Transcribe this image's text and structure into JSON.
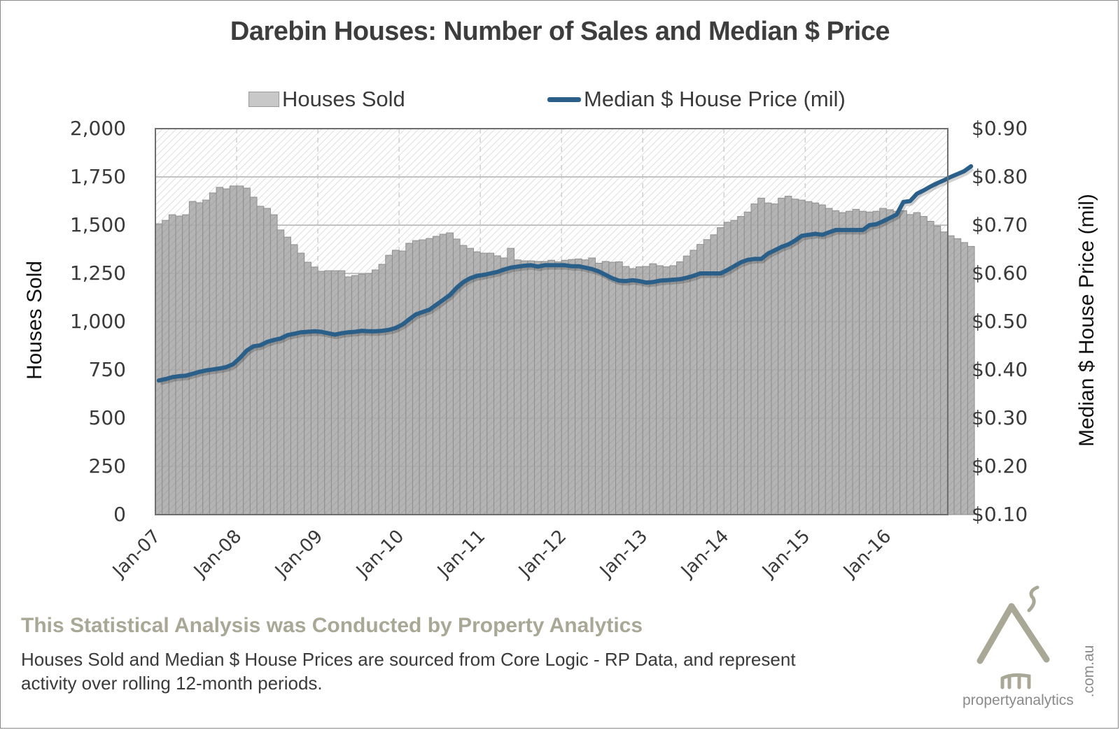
{
  "chart_data": {
    "type": "bar",
    "title": "Darebin Houses: Number of Sales and Median $ Price",
    "legend": {
      "placement": "top-center",
      "entries": [
        "Houses Sold",
        "Median $ House Price (mil)"
      ]
    },
    "ylabel": "Houses Sold",
    "y2label": "Median $ House Price (mil)",
    "ylim": [
      0,
      2000
    ],
    "y2lim": [
      0.1,
      0.9
    ],
    "yticks": [
      "0",
      "250",
      "500",
      "750",
      "1,000",
      "1,250",
      "1,500",
      "1,750",
      "2,000"
    ],
    "y2ticks": [
      "$0.10",
      "$0.20",
      "$0.30",
      "$0.40",
      "$0.50",
      "$0.60",
      "$0.70",
      "$0.80",
      "$0.90"
    ],
    "xticks": [
      "Jan-07",
      "Jan-08",
      "Jan-09",
      "Jan-10",
      "Jan-11",
      "Jan-12",
      "Jan-13",
      "Jan-14",
      "Jan-15",
      "Jan-16"
    ],
    "grid": true,
    "x_start": "Jan-07",
    "x_interval": "monthly",
    "series": [
      {
        "name": "Houses Sold",
        "type": "bar",
        "color": "#b4b4b4",
        "values": [
          1507,
          1525,
          1554,
          1547,
          1554,
          1623,
          1616,
          1630,
          1667,
          1696,
          1688,
          1703,
          1703,
          1692,
          1645,
          1598,
          1587,
          1554,
          1475,
          1438,
          1399,
          1355,
          1308,
          1283,
          1261,
          1264,
          1264,
          1264,
          1232,
          1239,
          1246,
          1250,
          1268,
          1297,
          1344,
          1370,
          1366,
          1406,
          1420,
          1424,
          1431,
          1442,
          1453,
          1460,
          1428,
          1395,
          1380,
          1362,
          1355,
          1355,
          1341,
          1330,
          1380,
          1320,
          1315,
          1315,
          1312,
          1312,
          1318,
          1310,
          1318,
          1322,
          1325,
          1320,
          1330,
          1303,
          1312,
          1308,
          1310,
          1286,
          1275,
          1284,
          1286,
          1300,
          1290,
          1284,
          1290,
          1310,
          1340,
          1370,
          1400,
          1425,
          1450,
          1487,
          1515,
          1525,
          1545,
          1568,
          1610,
          1640,
          1615,
          1610,
          1640,
          1650,
          1635,
          1630,
          1622,
          1615,
          1605,
          1587,
          1575,
          1565,
          1572,
          1582,
          1572,
          1568,
          1572,
          1587,
          1580,
          1572,
          1575,
          1555,
          1565,
          1545,
          1520,
          1495,
          1465,
          1445,
          1430,
          1410,
          1390
        ]
      },
      {
        "name": "Median $ House Price (mil)",
        "type": "line",
        "color": "#2a5f8a",
        "values": [
          0.378,
          0.381,
          0.385,
          0.387,
          0.388,
          0.392,
          0.396,
          0.399,
          0.401,
          0.403,
          0.406,
          0.412,
          0.425,
          0.44,
          0.449,
          0.451,
          0.458,
          0.462,
          0.465,
          0.472,
          0.475,
          0.478,
          0.479,
          0.48,
          0.479,
          0.476,
          0.473,
          0.476,
          0.478,
          0.479,
          0.481,
          0.48,
          0.48,
          0.481,
          0.483,
          0.487,
          0.494,
          0.505,
          0.515,
          0.52,
          0.525,
          0.535,
          0.545,
          0.555,
          0.57,
          0.582,
          0.59,
          0.595,
          0.597,
          0.6,
          0.603,
          0.608,
          0.612,
          0.614,
          0.616,
          0.617,
          0.614,
          0.617,
          0.617,
          0.617,
          0.617,
          0.615,
          0.615,
          0.612,
          0.609,
          0.604,
          0.597,
          0.59,
          0.585,
          0.584,
          0.586,
          0.584,
          0.581,
          0.582,
          0.585,
          0.586,
          0.587,
          0.588,
          0.591,
          0.595,
          0.6,
          0.6,
          0.6,
          0.6,
          0.607,
          0.615,
          0.623,
          0.628,
          0.63,
          0.63,
          0.641,
          0.648,
          0.655,
          0.66,
          0.668,
          0.678,
          0.68,
          0.682,
          0.68,
          0.685,
          0.69,
          0.69,
          0.69,
          0.69,
          0.69,
          0.7,
          0.702,
          0.708,
          0.715,
          0.722,
          0.748,
          0.75,
          0.765,
          0.772,
          0.78,
          0.787,
          0.793,
          0.8,
          0.806,
          0.812,
          0.822
        ]
      }
    ]
  },
  "footer": {
    "heading": "This Statistical Analysis was Conducted by Property Analytics",
    "note": "Houses Sold and Median $ House Prices are sourced from Core Logic - RP Data, and represent activity over rolling 12-month periods."
  },
  "logo": {
    "name": "propertyanalytics",
    "domain": ".com.au"
  }
}
